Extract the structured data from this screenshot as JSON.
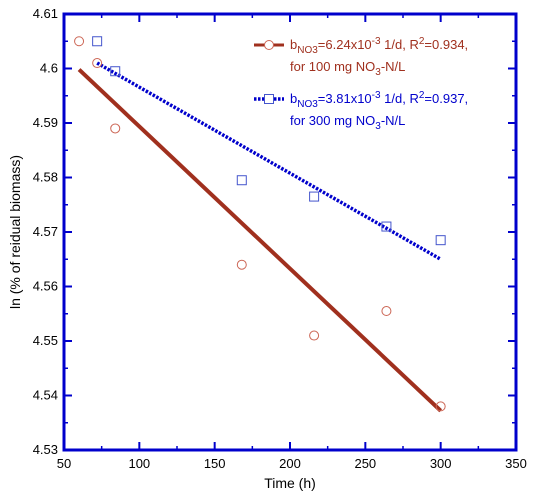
{
  "chart_data": {
    "type": "scatter",
    "xlabel": "Time (h)",
    "ylabel": "ln (% of reidual biomass)",
    "xlim": [
      50,
      350
    ],
    "ylim": [
      4.53,
      4.61
    ],
    "xticks": [
      50,
      100,
      150,
      200,
      250,
      300,
      350
    ],
    "yticks": [
      4.53,
      4.54,
      4.55,
      4.56,
      4.57,
      4.58,
      4.59,
      4.6,
      4.61
    ],
    "xtick_labels": [
      "50",
      "100",
      "150",
      "200",
      "250",
      "300",
      "350"
    ],
    "ytick_labels": [
      "4.53",
      "4.54",
      "4.55",
      "4.56",
      "4.57",
      "4.58",
      "4.59",
      "4.6",
      "4.61"
    ],
    "frame_color": "#0000cc",
    "legend_placement": "top-right",
    "series": [
      {
        "color": "#cc6655",
        "line_color": "#a0301e",
        "marker": "circle",
        "points": [
          [
            60,
            4.605
          ],
          [
            72,
            4.601
          ],
          [
            84,
            4.589
          ],
          [
            168,
            4.564
          ],
          [
            216,
            4.551
          ],
          [
            264,
            4.5555
          ],
          [
            300,
            4.538
          ]
        ],
        "fit": [
          [
            60,
            4.5998
          ],
          [
            300,
            4.5372
          ]
        ],
        "legend": {
          "b": "b",
          "sub": "NO3",
          "text1": "=6.24x10",
          "sup": "-3",
          "text2": " 1/d, R",
          "sup2": "2",
          "text3": "=0.934,",
          "line2a": "for 100 mg NO",
          "line2sub": "3",
          "line2b": "-N/L"
        }
      },
      {
        "color": "#4455cc",
        "line_color": "#0000cc",
        "marker": "square",
        "points": [
          [
            72,
            4.605
          ],
          [
            84,
            4.5995
          ],
          [
            168,
            4.5795
          ],
          [
            216,
            4.5765
          ],
          [
            264,
            4.571
          ],
          [
            300,
            4.5685
          ]
        ],
        "fit": [
          [
            72,
            4.601
          ],
          [
            300,
            4.565
          ]
        ],
        "legend": {
          "b": "b",
          "sub": "NO3",
          "text1": "=3.81x10",
          "sup": "-3",
          "text2": "  1/d, R",
          "sup2": "2",
          "text3": "=0.937,",
          "line2a": "for 300 mg NO",
          "line2sub": "3",
          "line2b": "-N/L"
        }
      }
    ]
  }
}
